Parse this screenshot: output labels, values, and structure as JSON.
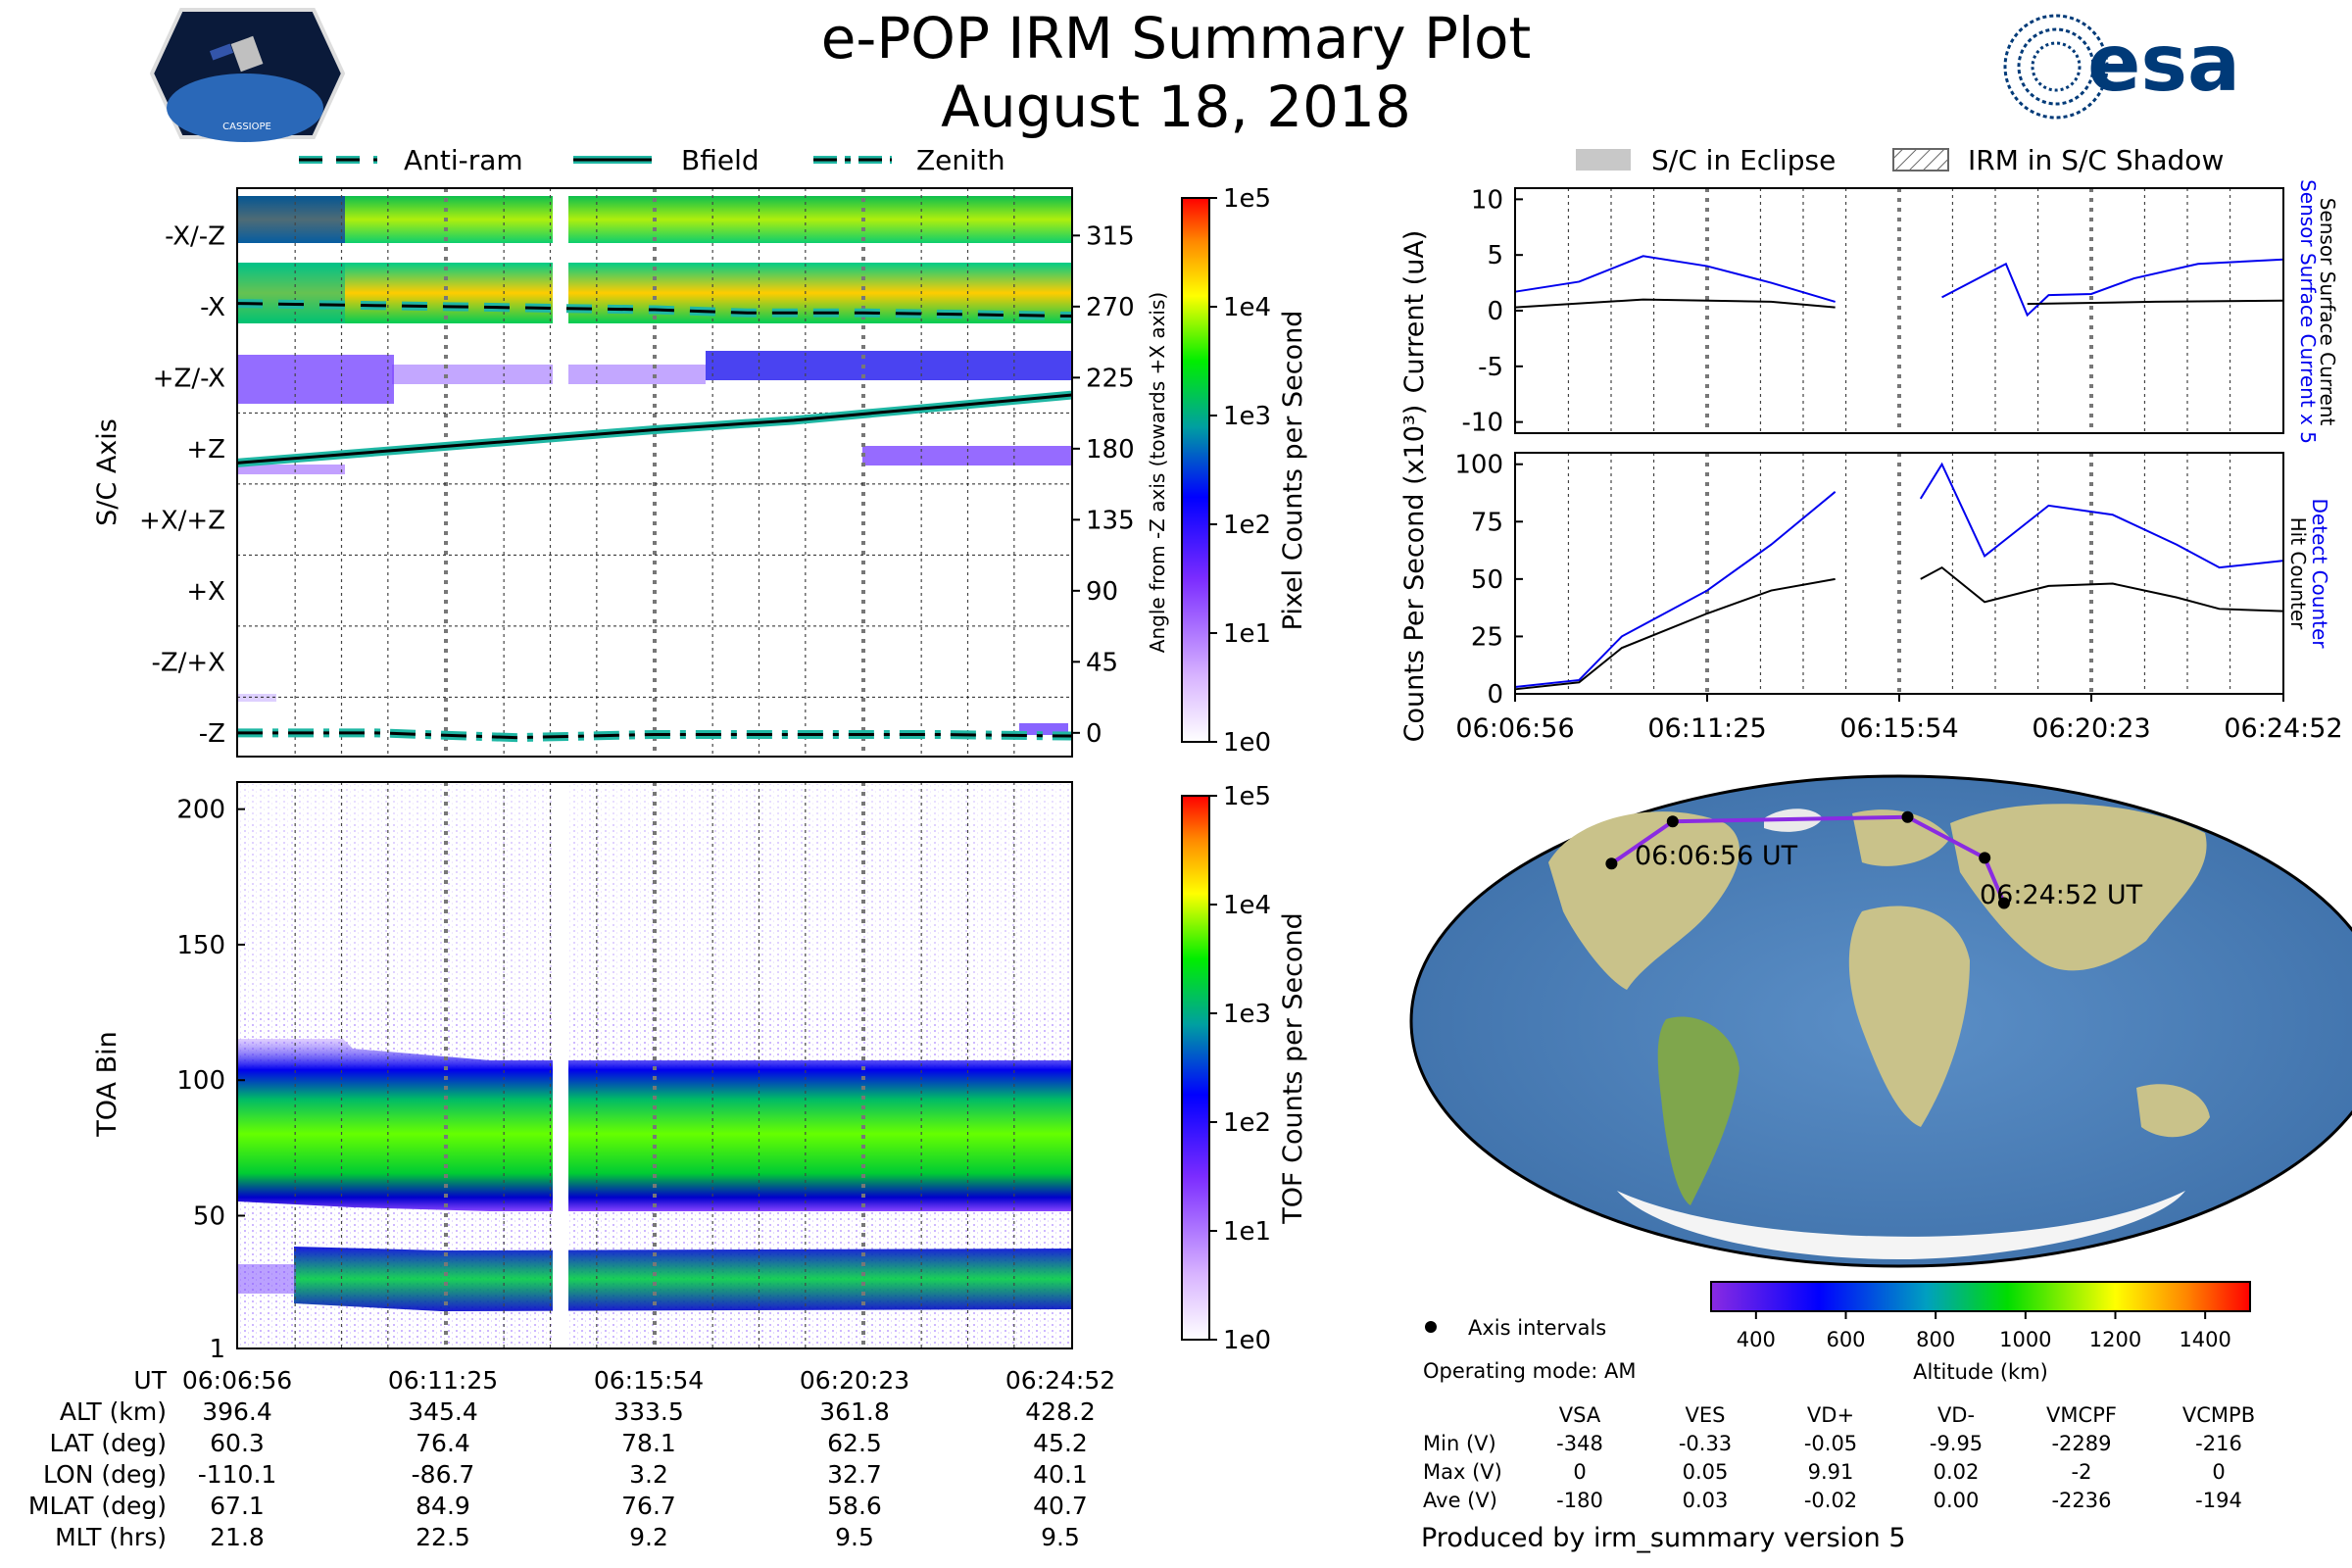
{
  "header": {
    "title": "e-POP IRM Summary Plot",
    "date": "August 18, 2018",
    "esa_logo_text": "esa",
    "cassiope_logo_text": "CASSIOPE"
  },
  "colors": {
    "accent_teal": "#1fb7a4",
    "current_blue": "#0000ee",
    "black": "#000000",
    "eclipse_gray": "#c8c8c8"
  },
  "legend_top_left": [
    {
      "label": "Anti-ram",
      "style": "dashed"
    },
    {
      "label": "Bfield",
      "style": "solid"
    },
    {
      "label": "Zenith",
      "style": "dashdot"
    }
  ],
  "legend_top_right": [
    {
      "label": "S/C in Eclipse",
      "style": "gray-fill"
    },
    {
      "label": "IRM in S/C Shadow",
      "style": "hatch"
    }
  ],
  "time_ticks": [
    "06:06:56",
    "06:11:25",
    "06:15:54",
    "06:20:23",
    "06:24:52"
  ],
  "chart_data": [
    {
      "id": "sc_axis_panel",
      "type": "heatmap",
      "ylabel": "S/C Axis",
      "ylabel_right": "Angle from -Z axis (towards +X axis)",
      "y_categories": [
        "-X/-Z",
        "-X",
        "+Z/-X",
        "+Z",
        "+X/+Z",
        "+X",
        "-Z/+X",
        "-Z"
      ],
      "y_right_ticks": [
        315,
        270,
        225,
        180,
        135,
        90,
        45,
        0
      ],
      "ylim": [
        -15,
        345
      ],
      "colorbar": {
        "label": "Pixel Counts per Second",
        "ticks": [
          "1e5",
          "1e4",
          "1e3",
          "1e2",
          "1e1",
          "1e0"
        ]
      },
      "series": [
        {
          "name": "Anti-ram",
          "style": "dashed",
          "x": [
            0,
            9,
            18,
            22,
            27,
            36
          ],
          "values": [
            272,
            270,
            268,
            266,
            266,
            264
          ]
        },
        {
          "name": "Bfield",
          "style": "solid",
          "x": [
            0,
            6,
            12,
            18,
            24,
            30,
            36
          ],
          "values": [
            171,
            178,
            185,
            192,
            198,
            206,
            214
          ]
        },
        {
          "name": "Zenith",
          "style": "dashdot",
          "x": [
            0,
            6,
            12,
            18,
            24,
            30,
            36
          ],
          "values": [
            0,
            0,
            -3,
            -1,
            -1,
            -1,
            -2
          ]
        }
      ]
    },
    {
      "id": "toa_panel",
      "type": "heatmap",
      "ylabel": "TOA Bin",
      "y_ticks": [
        1,
        50,
        100,
        150,
        200
      ],
      "ylim": [
        1,
        210
      ],
      "colorbar": {
        "label": "TOF Counts per Second",
        "ticks": [
          "1e5",
          "1e4",
          "1e3",
          "1e2",
          "1e1",
          "1e0"
        ]
      }
    },
    {
      "id": "current_panel",
      "type": "line",
      "ylabel": "Current (uA)",
      "ylim": [
        -11,
        11
      ],
      "y_ticks": [
        10,
        5,
        0,
        -5,
        -10
      ],
      "right_labels": [
        "Sensor Surface Current x 5",
        "Sensor Surface Current"
      ],
      "series": [
        {
          "name": "Sensor Surface Current x 5",
          "color": "blue",
          "x": [
            0,
            3,
            6,
            9,
            12,
            15,
            16,
            20,
            23,
            24,
            25,
            27,
            29,
            32,
            36
          ],
          "values": [
            1.7,
            2.6,
            4.9,
            4.0,
            2.5,
            0.8,
            null,
            1.2,
            4.2,
            -0.4,
            1.4,
            1.5,
            2.9,
            4.2,
            4.6
          ]
        },
        {
          "name": "Sensor Surface Current",
          "color": "black",
          "x": [
            0,
            6,
            12,
            15,
            16,
            24,
            30,
            36
          ],
          "values": [
            0.3,
            1.0,
            0.8,
            0.3,
            null,
            0.6,
            0.8,
            0.9
          ]
        }
      ]
    },
    {
      "id": "counts_panel",
      "type": "line",
      "ylabel": "Counts Per Second (x10³)",
      "ylim": [
        0,
        105
      ],
      "y_ticks": [
        100,
        75,
        50,
        25,
        0
      ],
      "right_labels": [
        "Detect Counter",
        "Hit Counter"
      ],
      "series": [
        {
          "name": "Detect Counter",
          "color": "blue",
          "x": [
            0,
            3,
            5,
            9,
            12,
            15,
            16,
            19,
            20,
            22,
            25,
            28,
            31,
            33,
            36
          ],
          "values": [
            3,
            6,
            25,
            45,
            65,
            88,
            null,
            85,
            100,
            60,
            82,
            78,
            65,
            55,
            58
          ]
        },
        {
          "name": "Hit Counter",
          "color": "black",
          "x": [
            0,
            3,
            5,
            9,
            12,
            15,
            16,
            19,
            20,
            22,
            25,
            28,
            31,
            33,
            36
          ],
          "values": [
            2,
            5,
            20,
            35,
            45,
            50,
            null,
            50,
            55,
            40,
            47,
            48,
            42,
            37,
            36
          ]
        }
      ]
    },
    {
      "id": "ground_track_map",
      "type": "scatter",
      "track_labels": [
        "06:06:56 UT",
        "06:24:52 UT"
      ],
      "track_points": [
        {
          "lat": 60.3,
          "lon": -110.1
        },
        {
          "lat": 76.4,
          "lon": -86.7
        },
        {
          "lat": 78.1,
          "lon": 3.2
        },
        {
          "lat": 62.5,
          "lon": 32.7
        },
        {
          "lat": 45.2,
          "lon": 40.1
        }
      ],
      "colorbar": {
        "label": "Altitude (km)",
        "ticks": [
          400,
          600,
          800,
          1000,
          1200,
          1400
        ],
        "range": [
          300,
          1500
        ]
      },
      "legend": "Axis intervals",
      "operating_mode": "Operating mode: AM"
    }
  ],
  "ephemeris": {
    "rows": [
      {
        "label": "UT",
        "values": [
          "06:06:56",
          "06:11:25",
          "06:15:54",
          "06:20:23",
          "06:24:52"
        ]
      },
      {
        "label": "ALT (km)",
        "values": [
          "396.4",
          "345.4",
          "333.5",
          "361.8",
          "428.2"
        ]
      },
      {
        "label": "LAT (deg)",
        "values": [
          "60.3",
          "76.4",
          "78.1",
          "62.5",
          "45.2"
        ]
      },
      {
        "label": "LON (deg)",
        "values": [
          "-110.1",
          "-86.7",
          "3.2",
          "32.7",
          "40.1"
        ]
      },
      {
        "label": "MLAT (deg)",
        "values": [
          "67.1",
          "84.9",
          "76.7",
          "58.6",
          "40.7"
        ]
      },
      {
        "label": "MLT (hrs)",
        "values": [
          "21.8",
          "22.5",
          "9.2",
          "9.5",
          "9.5"
        ]
      }
    ]
  },
  "voltages": {
    "columns": [
      "VSA",
      "VES",
      "VD+",
      "VD-",
      "VMCPF",
      "VCMPB"
    ],
    "rows": [
      {
        "label": "Min (V)",
        "values": [
          "-348",
          "-0.33",
          "-0.05",
          "-9.95",
          "-2289",
          "-216"
        ]
      },
      {
        "label": "Max (V)",
        "values": [
          "0",
          "0.05",
          "9.91",
          "0.02",
          "-2",
          "0"
        ]
      },
      {
        "label": "Ave (V)",
        "values": [
          "-180",
          "0.03",
          "-0.02",
          "0.00",
          "-2236",
          "-194"
        ]
      }
    ]
  },
  "footer": "Produced by irm_summary version 5"
}
